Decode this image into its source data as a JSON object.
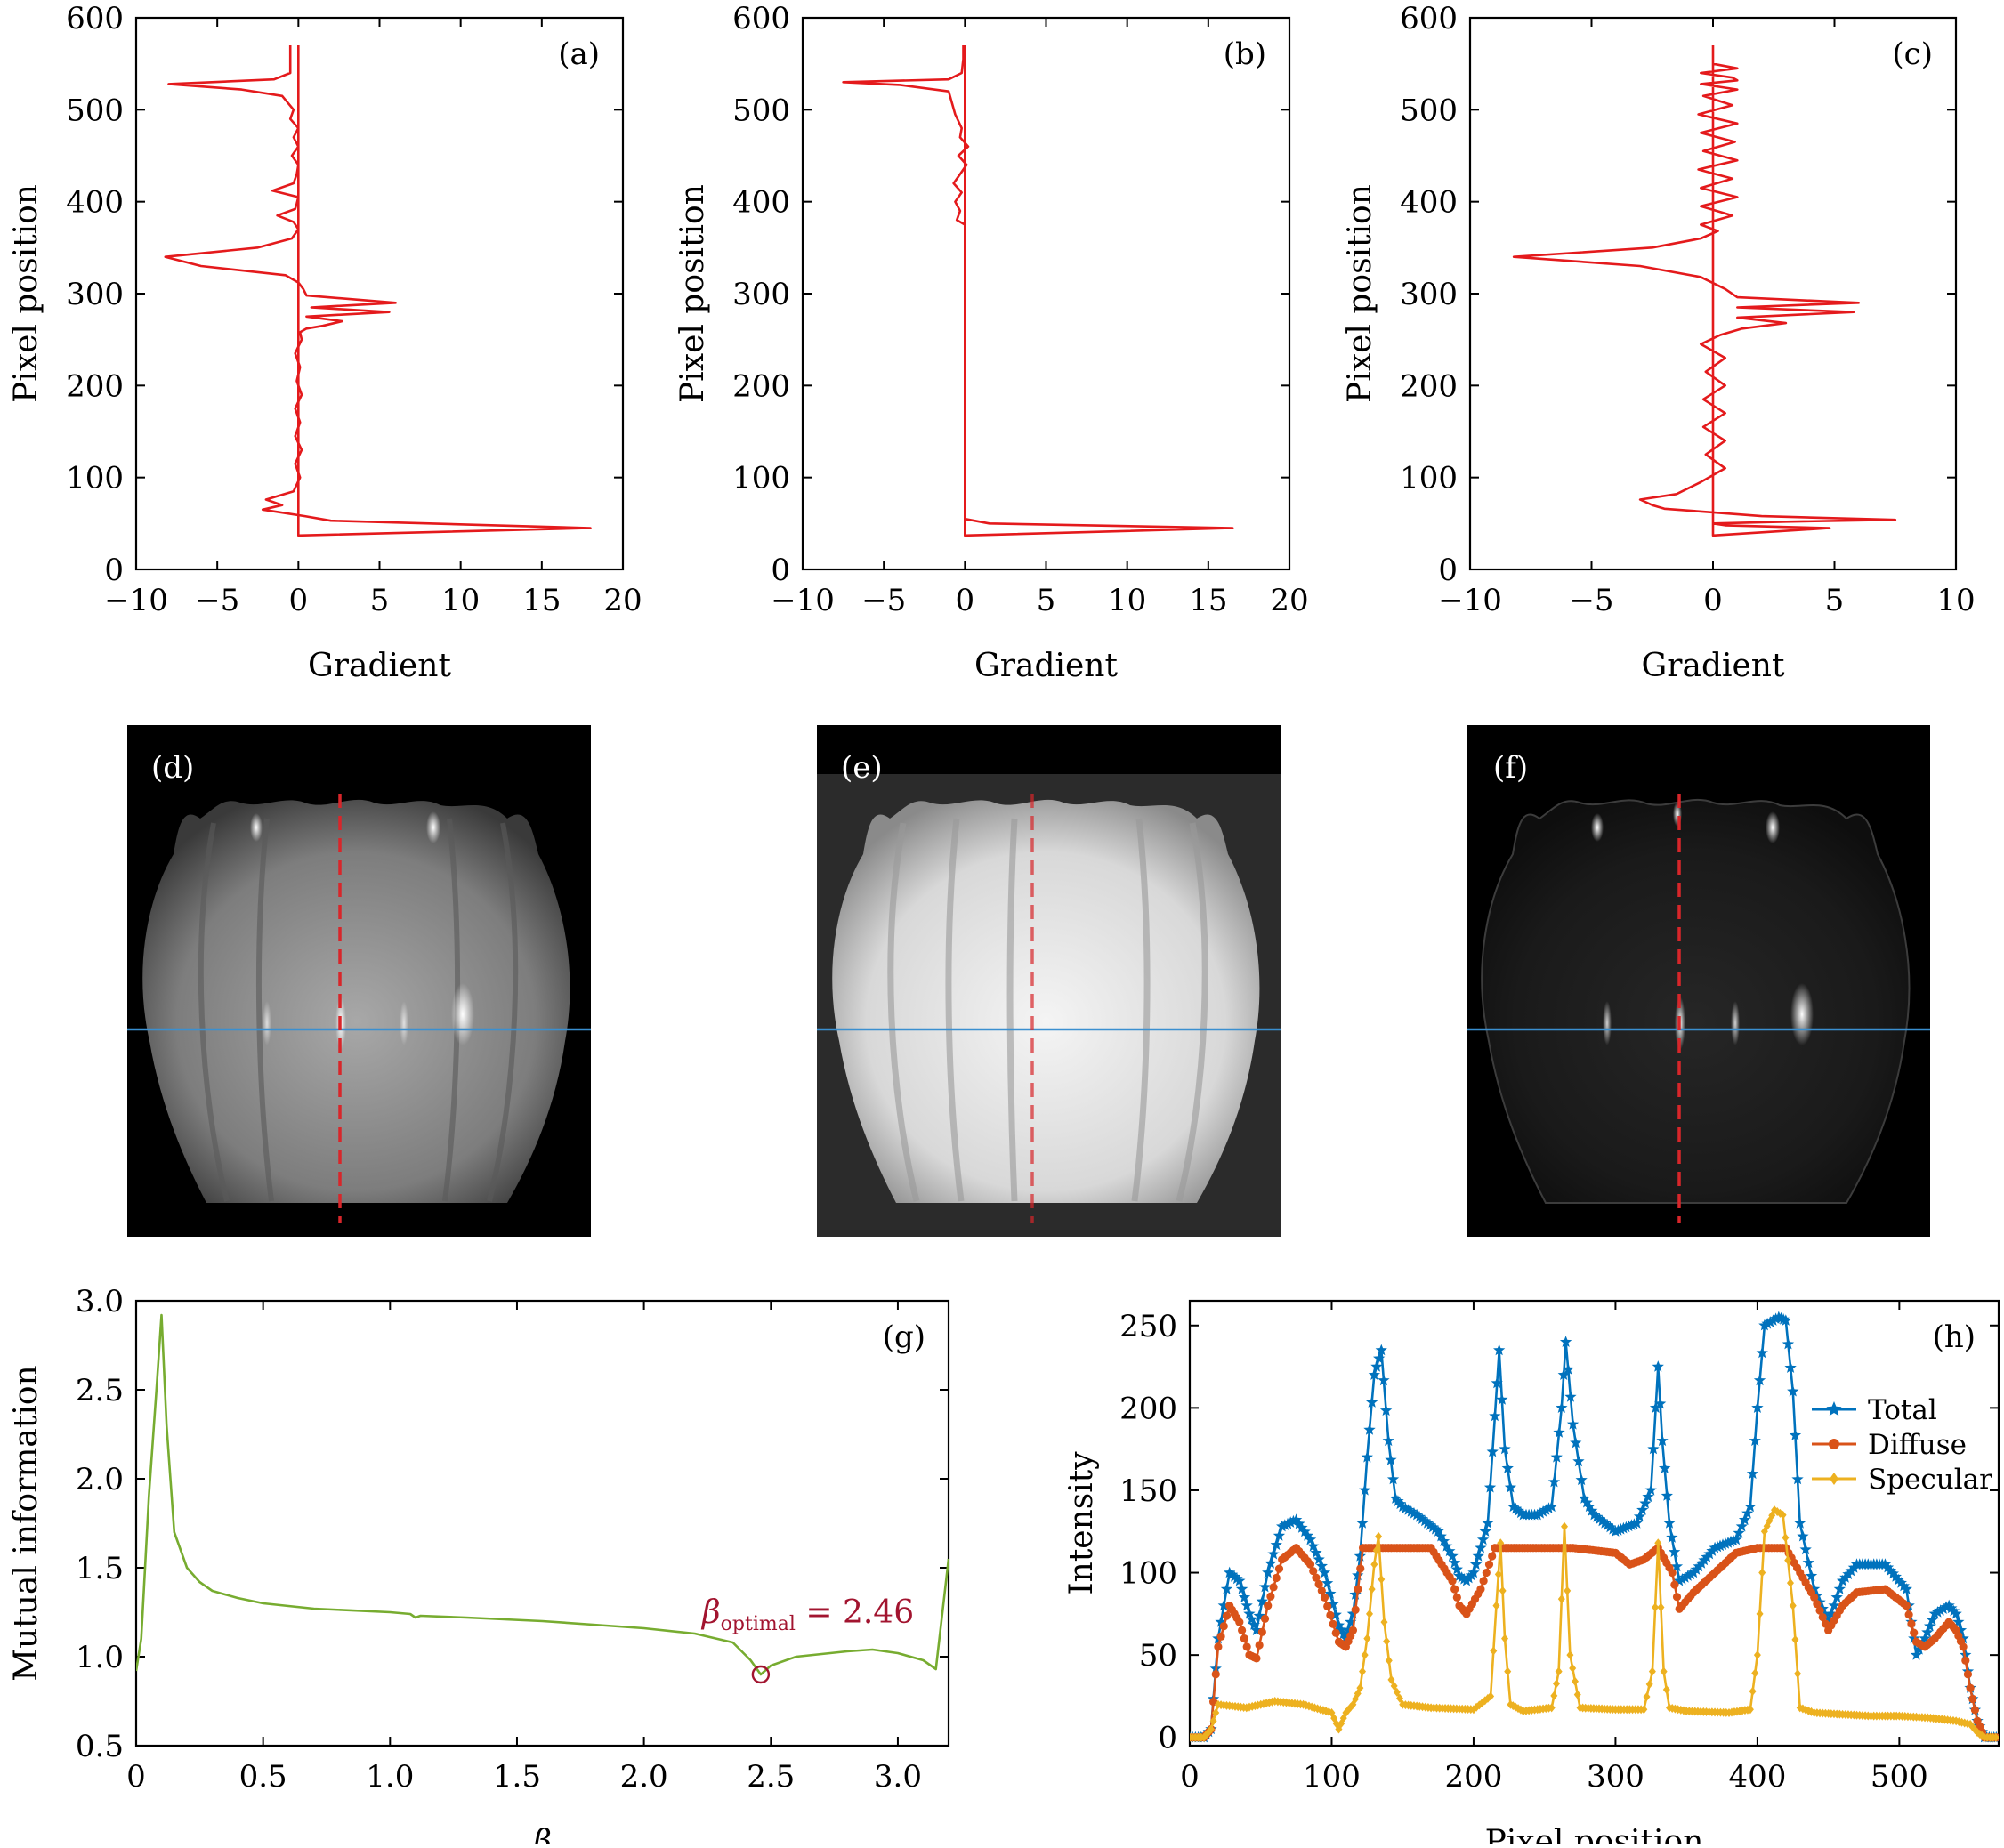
{
  "colors": {
    "gradient_line": "#e41a1c",
    "mutual_info_line": "#77ac30",
    "optimal_marker": "#a2142f",
    "total": "#0072bd",
    "diffuse": "#d95319",
    "specular": "#edb120",
    "horizontal_cut_line": "#3a8fd0",
    "vertical_cut_line": "#d8262a"
  },
  "chart_data": [
    {
      "id": "a",
      "panel_label": "(a)",
      "type": "line",
      "xlabel": "Gradient",
      "ylabel": "Pixel position",
      "xlim": [
        -10,
        20
      ],
      "ylim": [
        0,
        600
      ],
      "xticks": [
        -10,
        -5,
        0,
        5,
        10,
        15,
        20
      ],
      "xtick_labels": [
        "−10",
        "−5",
        "0",
        "5",
        "10",
        "15",
        "20"
      ],
      "yticks": [
        0,
        100,
        200,
        300,
        400,
        500,
        600
      ],
      "ytick_labels": [
        "0",
        "100",
        "200",
        "300",
        "400",
        "500",
        "600"
      ],
      "series": [
        {
          "x": [
            0,
            0,
            18,
            2,
            0.4,
            -2.2,
            -1.0,
            -2.0,
            -0.3,
            0.1,
            -0.2,
            0.2,
            -0.2,
            0.1,
            -0.2,
            0.2,
            -0.1,
            0.1,
            -0.2,
            0.2,
            0.1,
            0.5,
            1.5,
            2.7,
            0.5,
            5.6,
            0.8,
            6.0,
            0.5,
            0.3,
            0.0,
            -0.8,
            -6.0,
            -8.2,
            -2.5,
            -0.4,
            0.0,
            -0.3,
            -1.3,
            -0.2,
            -0.1,
            0.0,
            -1.6,
            -0.3,
            -0.1,
            0.0,
            -0.4,
            0.0,
            -0.3,
            0.0,
            -0.5,
            -0.3,
            -1.0,
            -3.5,
            -8.0,
            -1.5,
            -0.5,
            -0.5,
            -0.5
          ],
          "y": [
            570,
            37,
            45,
            53,
            58,
            65,
            70,
            76,
            85,
            100,
            115,
            130,
            145,
            160,
            175,
            190,
            205,
            220,
            235,
            250,
            258,
            262,
            265,
            270,
            275,
            280,
            285,
            290,
            298,
            305,
            312,
            320,
            330,
            340,
            350,
            360,
            370,
            378,
            385,
            392,
            398,
            405,
            412,
            420,
            430,
            440,
            450,
            460,
            470,
            480,
            490,
            500,
            515,
            522,
            528,
            533,
            540,
            555,
            570
          ]
        }
      ]
    },
    {
      "id": "b",
      "panel_label": "(b)",
      "type": "line",
      "xlabel": "Gradient",
      "ylabel": "Pixel position",
      "xlim": [
        -10,
        20
      ],
      "ylim": [
        0,
        600
      ],
      "xticks": [
        -10,
        -5,
        0,
        5,
        10,
        15,
        20
      ],
      "xtick_labels": [
        "−10",
        "−5",
        "0",
        "5",
        "10",
        "15",
        "20"
      ],
      "yticks": [
        0,
        100,
        200,
        300,
        400,
        500,
        600
      ],
      "ytick_labels": [
        "0",
        "100",
        "200",
        "300",
        "400",
        "500",
        "600"
      ],
      "series": [
        {
          "x": [
            0,
            0,
            16.5,
            1.5,
            0,
            0,
            0,
            0,
            0,
            0,
            -0.5,
            -0.3,
            -0.6,
            -0.2,
            -0.7,
            -0.3,
            0.1,
            -0.4,
            0.2,
            -0.3,
            -0.2,
            -0.6,
            -1.0,
            -4.0,
            -7.5,
            -1.0,
            -0.2,
            -0.1,
            -0.1
          ],
          "y": [
            570,
            37,
            45,
            50,
            55,
            100,
            200,
            300,
            370,
            375,
            380,
            390,
            400,
            410,
            420,
            430,
            440,
            450,
            460,
            470,
            480,
            495,
            520,
            527,
            530,
            533,
            540,
            555,
            570
          ]
        }
      ]
    },
    {
      "id": "c",
      "panel_label": "(c)",
      "type": "line",
      "xlabel": "Gradient",
      "ylabel": "Pixel position",
      "xlim": [
        -10,
        10
      ],
      "ylim": [
        0,
        600
      ],
      "xticks": [
        -10,
        -5,
        0,
        5,
        10
      ],
      "xtick_labels": [
        "−10",
        "−5",
        "0",
        "5",
        "10"
      ],
      "yticks": [
        0,
        100,
        200,
        300,
        400,
        500,
        600
      ],
      "ytick_labels": [
        "0",
        "100",
        "200",
        "300",
        "400",
        "500",
        "600"
      ],
      "series": [
        {
          "x": [
            0,
            0,
            4.8,
            0.5,
            0,
            3.0,
            7.5,
            2.0,
            0.0,
            -2.0,
            -2.5,
            -3.0,
            -1.5,
            -0.5,
            0.5,
            -0.3,
            0.5,
            -0.4,
            0.5,
            -0.4,
            0.5,
            -0.3,
            0.5,
            -0.5,
            0.3,
            1.2,
            3.0,
            1.0,
            5.8,
            1.0,
            6.0,
            1.0,
            0.5,
            -0.5,
            -3.0,
            -8.2,
            -2.5,
            -0.5,
            0.2,
            -0.5,
            0.8,
            -0.5,
            1.0,
            -0.5,
            0.8,
            -0.6,
            1.0,
            -0.4,
            0.9,
            -0.5,
            1.0,
            -0.6,
            0.8,
            -0.4,
            1.0,
            -0.5,
            1.0,
            0.8,
            -0.5,
            1.0,
            0.0,
            0.0
          ],
          "y": [
            570,
            37,
            45,
            48,
            50,
            52,
            54,
            58,
            62,
            66,
            70,
            76,
            82,
            95,
            110,
            125,
            140,
            155,
            170,
            185,
            200,
            215,
            230,
            245,
            255,
            262,
            268,
            274,
            280,
            285,
            290,
            296,
            305,
            318,
            330,
            340,
            350,
            360,
            368,
            375,
            385,
            395,
            405,
            415,
            425,
            435,
            445,
            455,
            465,
            475,
            485,
            495,
            505,
            515,
            522,
            528,
            532,
            535,
            540,
            545,
            550,
            570
          ]
        }
      ]
    },
    {
      "id": "g",
      "panel_label": "(g)",
      "type": "line",
      "xlabel": "β",
      "ylabel": "Mutual information",
      "xlim": [
        0,
        3.2
      ],
      "ylim": [
        0.5,
        3.0
      ],
      "xticks": [
        0,
        0.5,
        1.0,
        1.5,
        2.0,
        2.5,
        3.0
      ],
      "xtick_labels": [
        "0",
        "0.5",
        "1.0",
        "1.5",
        "2.0",
        "2.5",
        "3.0"
      ],
      "yticks": [
        0.5,
        1.0,
        1.5,
        2.0,
        2.5,
        3.0
      ],
      "ytick_labels": [
        "0.5",
        "1.0",
        "1.5",
        "2.0",
        "2.5",
        "3.0"
      ],
      "annotation": {
        "prefix": "β",
        "subscript": "optimal",
        "suffix": " = 2.46",
        "x": 2.46,
        "y": 0.9
      },
      "series": [
        {
          "x": [
            0,
            0.02,
            0.05,
            0.08,
            0.1,
            0.12,
            0.15,
            0.2,
            0.25,
            0.3,
            0.4,
            0.5,
            0.7,
            1.0,
            1.08,
            1.1,
            1.12,
            1.3,
            1.6,
            1.8,
            2.0,
            2.2,
            2.35,
            2.42,
            2.46,
            2.5,
            2.6,
            2.8,
            2.9,
            3.0,
            3.1,
            3.15,
            3.2
          ],
          "y": [
            0.92,
            1.1,
            1.9,
            2.5,
            2.92,
            2.3,
            1.7,
            1.5,
            1.42,
            1.37,
            1.33,
            1.3,
            1.27,
            1.25,
            1.24,
            1.22,
            1.23,
            1.22,
            1.2,
            1.18,
            1.16,
            1.13,
            1.08,
            0.98,
            0.9,
            0.95,
            1.0,
            1.03,
            1.04,
            1.02,
            0.98,
            0.93,
            1.55
          ]
        }
      ]
    },
    {
      "id": "h",
      "panel_label": "(h)",
      "type": "line",
      "xlabel": "Pixel position",
      "ylabel": "Intensity",
      "xlim": [
        0,
        570
      ],
      "ylim": [
        -5,
        265
      ],
      "xticks": [
        0,
        100,
        200,
        300,
        400,
        500
      ],
      "xtick_labels": [
        "0",
        "100",
        "200",
        "300",
        "400",
        "500"
      ],
      "yticks": [
        0,
        50,
        100,
        150,
        200,
        250
      ],
      "ytick_labels": [
        "0",
        "50",
        "100",
        "150",
        "200",
        "250"
      ],
      "legend": "upper right",
      "series": [
        {
          "name": "Total",
          "marker": "star",
          "x": [
            0,
            10,
            15,
            20,
            28,
            35,
            42,
            47,
            55,
            65,
            75,
            85,
            95,
            105,
            110,
            115,
            120,
            125,
            130,
            135,
            140,
            145,
            150,
            160,
            175,
            185,
            190,
            195,
            200,
            205,
            210,
            215,
            218,
            222,
            228,
            235,
            245,
            255,
            262,
            265,
            270,
            278,
            285,
            300,
            315,
            325,
            330,
            333,
            338,
            345,
            355,
            370,
            385,
            395,
            400,
            405,
            415,
            420,
            425,
            430,
            440,
            450,
            460,
            470,
            490,
            505,
            512,
            518,
            525,
            535,
            540,
            545,
            550,
            555,
            560,
            565,
            570
          ],
          "y": [
            0,
            0,
            5,
            60,
            100,
            95,
            75,
            65,
            100,
            128,
            132,
            120,
            100,
            68,
            60,
            75,
            110,
            170,
            220,
            235,
            180,
            145,
            140,
            135,
            125,
            110,
            98,
            95,
            100,
            115,
            130,
            195,
            235,
            175,
            140,
            135,
            135,
            140,
            200,
            240,
            190,
            145,
            135,
            125,
            130,
            150,
            225,
            180,
            130,
            95,
            100,
            115,
            120,
            140,
            200,
            250,
            255,
            253,
            210,
            130,
            90,
            70,
            95,
            105,
            105,
            90,
            50,
            60,
            75,
            80,
            75,
            60,
            30,
            10,
            0,
            0,
            0
          ]
        },
        {
          "name": "Diffuse",
          "marker": "circle",
          "x": [
            0,
            10,
            15,
            20,
            28,
            35,
            42,
            47,
            55,
            65,
            75,
            85,
            95,
            105,
            110,
            115,
            122,
            130,
            150,
            170,
            185,
            190,
            195,
            205,
            215,
            240,
            270,
            300,
            310,
            320,
            330,
            340,
            345,
            355,
            370,
            385,
            400,
            420,
            430,
            440,
            450,
            460,
            470,
            490,
            505,
            512,
            518,
            525,
            535,
            540,
            545,
            550,
            555,
            560,
            565,
            570
          ],
          "y": [
            0,
            0,
            5,
            55,
            80,
            70,
            50,
            48,
            80,
            108,
            115,
            105,
            85,
            58,
            55,
            65,
            115,
            115,
            115,
            115,
            95,
            80,
            75,
            90,
            115,
            115,
            115,
            112,
            105,
            108,
            115,
            100,
            78,
            88,
            100,
            112,
            115,
            115,
            100,
            85,
            65,
            80,
            88,
            90,
            80,
            58,
            55,
            60,
            70,
            65,
            55,
            30,
            10,
            0,
            0,
            0
          ]
        },
        {
          "name": "Specular",
          "marker": "diamond",
          "x": [
            0,
            10,
            15,
            20,
            40,
            60,
            80,
            100,
            105,
            110,
            115,
            120,
            125,
            130,
            133,
            137,
            142,
            150,
            170,
            200,
            212,
            216,
            219,
            222,
            226,
            235,
            255,
            260,
            264,
            268,
            275,
            300,
            320,
            326,
            330,
            334,
            338,
            350,
            380,
            395,
            400,
            405,
            412,
            418,
            425,
            430,
            440,
            460,
            480,
            500,
            520,
            540,
            550,
            555,
            560,
            570
          ],
          "y": [
            0,
            0,
            5,
            20,
            18,
            22,
            20,
            15,
            5,
            15,
            20,
            30,
            60,
            105,
            122,
            70,
            35,
            20,
            18,
            17,
            25,
            80,
            118,
            60,
            20,
            16,
            18,
            40,
            128,
            50,
            18,
            17,
            17,
            40,
            118,
            40,
            18,
            16,
            15,
            17,
            50,
            125,
            138,
            135,
            80,
            18,
            15,
            14,
            13,
            13,
            12,
            10,
            8,
            3,
            0,
            0
          ]
        }
      ]
    }
  ],
  "images": [
    {
      "id": "d",
      "panel_label": "(d)"
    },
    {
      "id": "e",
      "panel_label": "(e)"
    },
    {
      "id": "f",
      "panel_label": "(f)"
    }
  ]
}
